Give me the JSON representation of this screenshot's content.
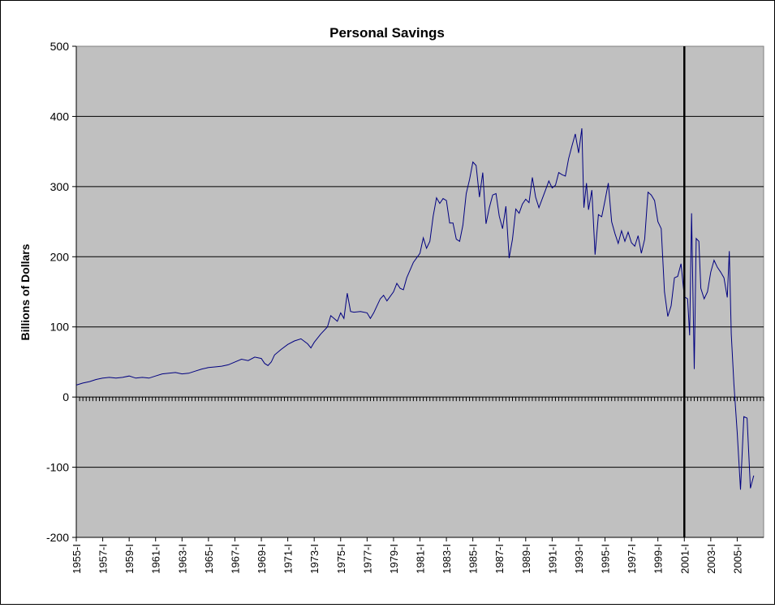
{
  "chart_data": {
    "type": "line",
    "title": "Personal Savings",
    "xlabel": "",
    "ylabel": "Billions of Dollars",
    "ylim": [
      -200,
      500
    ],
    "yticks": [
      -200,
      -100,
      0,
      100,
      200,
      300,
      400,
      500
    ],
    "grid": true,
    "legend": "none",
    "background": "#c0c0c0",
    "line_color": "#000080",
    "x_start_year": 1955,
    "x_end_year": 2006,
    "categories": [
      "1955-I",
      "1957-I",
      "1959-I",
      "1961-I",
      "1963-I",
      "1965-I",
      "1967-I",
      "1969-I",
      "1971-I",
      "1973-I",
      "1975-I",
      "1977-I",
      "1979-I",
      "1981-I",
      "1983-I",
      "1985-I",
      "1987-I",
      "1989-I",
      "1991-I",
      "1993-I",
      "1995-I",
      "1997-I",
      "1999-I",
      "2001-I",
      "2003-I",
      "2005-I"
    ],
    "marker_line": {
      "x": 2001.0,
      "color": "#000000"
    },
    "series": [
      {
        "name": "",
        "points": [
          [
            1955.0,
            17
          ],
          [
            1955.5,
            20
          ],
          [
            1956.0,
            22
          ],
          [
            1956.5,
            25
          ],
          [
            1957.0,
            27
          ],
          [
            1957.5,
            28
          ],
          [
            1958.0,
            27
          ],
          [
            1958.5,
            28
          ],
          [
            1959.0,
            30
          ],
          [
            1959.5,
            27
          ],
          [
            1960.0,
            28
          ],
          [
            1960.5,
            27
          ],
          [
            1961.0,
            30
          ],
          [
            1961.5,
            33
          ],
          [
            1962.0,
            34
          ],
          [
            1962.5,
            35
          ],
          [
            1963.0,
            33
          ],
          [
            1963.5,
            34
          ],
          [
            1964.0,
            37
          ],
          [
            1964.5,
            40
          ],
          [
            1965.0,
            42
          ],
          [
            1965.5,
            43
          ],
          [
            1966.0,
            44
          ],
          [
            1966.5,
            46
          ],
          [
            1967.0,
            50
          ],
          [
            1967.5,
            54
          ],
          [
            1968.0,
            52
          ],
          [
            1968.5,
            57
          ],
          [
            1969.0,
            55
          ],
          [
            1969.25,
            48
          ],
          [
            1969.5,
            45
          ],
          [
            1969.75,
            50
          ],
          [
            1970.0,
            60
          ],
          [
            1970.5,
            68
          ],
          [
            1971.0,
            75
          ],
          [
            1971.5,
            80
          ],
          [
            1972.0,
            83
          ],
          [
            1972.5,
            76
          ],
          [
            1972.75,
            70
          ],
          [
            1973.0,
            78
          ],
          [
            1973.5,
            90
          ],
          [
            1974.0,
            100
          ],
          [
            1974.25,
            116
          ],
          [
            1974.5,
            112
          ],
          [
            1974.75,
            108
          ],
          [
            1975.0,
            120
          ],
          [
            1975.25,
            112
          ],
          [
            1975.5,
            148
          ],
          [
            1975.75,
            122
          ],
          [
            1976.0,
            121
          ],
          [
            1976.5,
            122
          ],
          [
            1977.0,
            120
          ],
          [
            1977.25,
            112
          ],
          [
            1977.5,
            120
          ],
          [
            1978.0,
            140
          ],
          [
            1978.25,
            145
          ],
          [
            1978.5,
            137
          ],
          [
            1979.0,
            150
          ],
          [
            1979.25,
            162
          ],
          [
            1979.5,
            155
          ],
          [
            1979.75,
            153
          ],
          [
            1980.0,
            170
          ],
          [
            1980.5,
            192
          ],
          [
            1981.0,
            205
          ],
          [
            1981.25,
            227
          ],
          [
            1981.5,
            212
          ],
          [
            1981.75,
            222
          ],
          [
            1982.0,
            258
          ],
          [
            1982.25,
            284
          ],
          [
            1982.5,
            276
          ],
          [
            1982.75,
            283
          ],
          [
            1983.0,
            280
          ],
          [
            1983.25,
            248
          ],
          [
            1983.5,
            248
          ],
          [
            1983.75,
            225
          ],
          [
            1984.0,
            222
          ],
          [
            1984.25,
            245
          ],
          [
            1984.5,
            290
          ],
          [
            1984.75,
            310
          ],
          [
            1985.0,
            335
          ],
          [
            1985.25,
            330
          ],
          [
            1985.5,
            285
          ],
          [
            1985.75,
            320
          ],
          [
            1986.0,
            247
          ],
          [
            1986.25,
            270
          ],
          [
            1986.5,
            288
          ],
          [
            1986.75,
            290
          ],
          [
            1987.0,
            258
          ],
          [
            1987.25,
            240
          ],
          [
            1987.5,
            272
          ],
          [
            1987.75,
            198
          ],
          [
            1988.0,
            225
          ],
          [
            1988.25,
            268
          ],
          [
            1988.5,
            262
          ],
          [
            1988.75,
            275
          ],
          [
            1989.0,
            282
          ],
          [
            1989.25,
            277
          ],
          [
            1989.5,
            313
          ],
          [
            1989.75,
            285
          ],
          [
            1990.0,
            270
          ],
          [
            1990.5,
            295
          ],
          [
            1990.75,
            308
          ],
          [
            1991.0,
            298
          ],
          [
            1991.25,
            302
          ],
          [
            1991.5,
            320
          ],
          [
            1991.75,
            317
          ],
          [
            1992.0,
            315
          ],
          [
            1992.25,
            340
          ],
          [
            1992.5,
            358
          ],
          [
            1992.75,
            375
          ],
          [
            1993.0,
            348
          ],
          [
            1993.25,
            383
          ],
          [
            1993.4,
            270
          ],
          [
            1993.6,
            305
          ],
          [
            1993.75,
            267
          ],
          [
            1994.0,
            295
          ],
          [
            1994.25,
            203
          ],
          [
            1994.5,
            260
          ],
          [
            1994.75,
            257
          ],
          [
            1995.0,
            280
          ],
          [
            1995.25,
            305
          ],
          [
            1995.5,
            250
          ],
          [
            1995.75,
            233
          ],
          [
            1996.0,
            219
          ],
          [
            1996.25,
            237
          ],
          [
            1996.5,
            222
          ],
          [
            1996.75,
            235
          ],
          [
            1997.0,
            220
          ],
          [
            1997.25,
            215
          ],
          [
            1997.5,
            230
          ],
          [
            1997.75,
            205
          ],
          [
            1998.0,
            225
          ],
          [
            1998.25,
            292
          ],
          [
            1998.5,
            288
          ],
          [
            1998.75,
            280
          ],
          [
            1999.0,
            250
          ],
          [
            1999.25,
            240
          ],
          [
            1999.5,
            150
          ],
          [
            1999.75,
            115
          ],
          [
            2000.0,
            130
          ],
          [
            2000.25,
            170
          ],
          [
            2000.5,
            172
          ],
          [
            2000.75,
            190
          ],
          [
            2001.0,
            143
          ],
          [
            2001.25,
            140
          ],
          [
            2001.4,
            88
          ],
          [
            2001.55,
            262
          ],
          [
            2001.75,
            40
          ],
          [
            2001.9,
            226
          ],
          [
            2002.1,
            222
          ],
          [
            2002.25,
            155
          ],
          [
            2002.5,
            140
          ],
          [
            2002.75,
            150
          ],
          [
            2003.0,
            178
          ],
          [
            2003.25,
            195
          ],
          [
            2003.5,
            185
          ],
          [
            2003.75,
            178
          ],
          [
            2004.0,
            170
          ],
          [
            2004.25,
            142
          ],
          [
            2004.4,
            208
          ],
          [
            2004.55,
            90
          ],
          [
            2004.75,
            18
          ],
          [
            2005.0,
            -50
          ],
          [
            2005.25,
            -132
          ],
          [
            2005.5,
            -28
          ],
          [
            2005.75,
            -30
          ],
          [
            2006.0,
            -130
          ],
          [
            2006.25,
            -112
          ]
        ]
      }
    ]
  }
}
